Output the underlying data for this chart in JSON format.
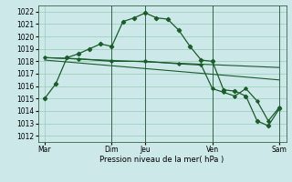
{
  "background_color": "#cce8e8",
  "grid_color": "#99ccbb",
  "line_color": "#1a5c2a",
  "vline_color": "#336644",
  "x_ticks_labels": [
    "Mar",
    "",
    "Dim",
    "Jeu",
    "",
    "Ven",
    "",
    "Sam"
  ],
  "x_ticks_pos": [
    0,
    1.5,
    3,
    4.5,
    6,
    7.5,
    9,
    10.5
  ],
  "xlabel": "Pression niveau de la mer( hPa )",
  "ylim": [
    1011.5,
    1022.5
  ],
  "yticks": [
    1012,
    1013,
    1014,
    1015,
    1016,
    1017,
    1018,
    1019,
    1020,
    1021,
    1022
  ],
  "xlim": [
    -0.3,
    10.8
  ],
  "series1_x": [
    0,
    0.5,
    1.0,
    1.5,
    2.0,
    2.5,
    3.0,
    3.5,
    4.0,
    4.5,
    5.0,
    5.5,
    6.0,
    6.5,
    7.0,
    7.5,
    8.0,
    8.5,
    9.0,
    9.5,
    10.0,
    10.5
  ],
  "series1_y": [
    1015.0,
    1016.2,
    1018.3,
    1018.6,
    1019.0,
    1019.4,
    1019.2,
    1021.2,
    1021.5,
    1021.9,
    1021.5,
    1021.4,
    1020.5,
    1019.2,
    1018.1,
    1018.0,
    1015.7,
    1015.6,
    1015.2,
    1013.2,
    1012.8,
    1014.2
  ],
  "series2_x": [
    0,
    1.5,
    3,
    4.5,
    6,
    7.0,
    7.5,
    8.0,
    8.5,
    9.0,
    9.5,
    10.0,
    10.5
  ],
  "series2_y": [
    1018.3,
    1018.2,
    1018.0,
    1018.0,
    1017.8,
    1017.7,
    1015.8,
    1015.5,
    1015.2,
    1015.8,
    1014.8,
    1013.2,
    1014.3
  ],
  "series3_x": [
    0,
    10.5
  ],
  "series3_y": [
    1018.3,
    1017.5
  ],
  "series4_x": [
    0,
    10.5
  ],
  "series4_y": [
    1018.1,
    1016.5
  ],
  "vlines_x": [
    3,
    4.5,
    7.5,
    10.5
  ]
}
